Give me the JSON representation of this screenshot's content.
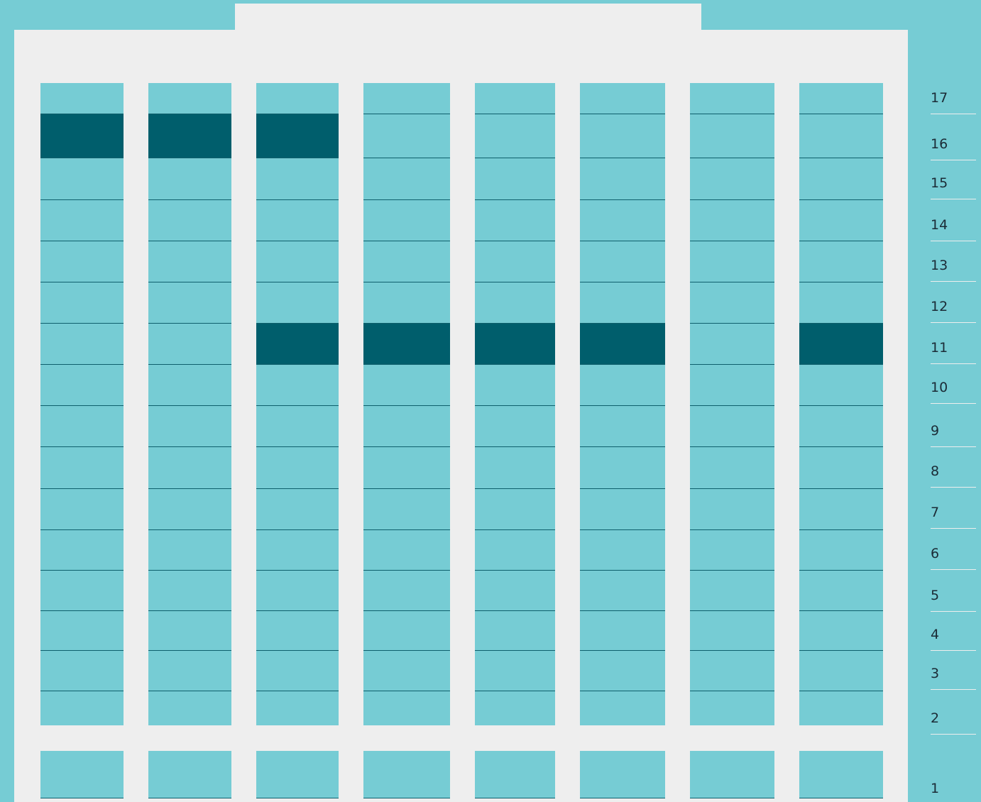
{
  "building": {
    "column_count": 8,
    "floors": [
      {
        "number": "17"
      },
      {
        "number": "16"
      },
      {
        "number": "15"
      },
      {
        "number": "14"
      },
      {
        "number": "13"
      },
      {
        "number": "12"
      },
      {
        "number": "11"
      },
      {
        "number": "10"
      },
      {
        "number": "9"
      },
      {
        "number": "8"
      },
      {
        "number": "7"
      },
      {
        "number": "6"
      },
      {
        "number": "5"
      },
      {
        "number": "4"
      },
      {
        "number": "3"
      },
      {
        "number": "2"
      },
      {
        "number": "1"
      }
    ],
    "highlighted": {
      "16": [
        1,
        2,
        3
      ],
      "11": [
        3,
        4,
        5,
        6,
        8
      ]
    }
  },
  "colors": {
    "background": "#76ccd4",
    "panel": "#eeeeee",
    "unit": "#76ccd4",
    "unit_highlighted": "#005e6c",
    "divider": "#0e5f6c",
    "label_text": "#1b2b36"
  }
}
